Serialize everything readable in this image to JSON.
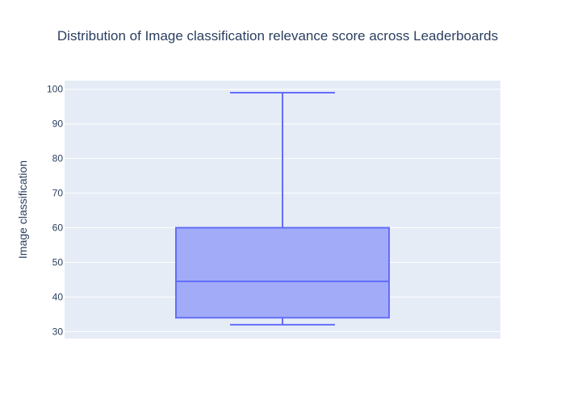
{
  "chart_data": {
    "type": "box",
    "title": "Distribution of Image classification relevance score across Leaderboards",
    "xlabel": "",
    "ylabel": "Image classification",
    "ylim": [
      28,
      102.5
    ],
    "yticks": [
      30,
      40,
      50,
      60,
      70,
      80,
      90,
      100
    ],
    "grid": true,
    "series": [
      {
        "min": 32,
        "q1": 34,
        "median": 44.5,
        "q3": 60,
        "max": 99
      }
    ]
  },
  "colors": {
    "plot_bg": "#e5ecf6",
    "grid": "#ffffff",
    "box_line": "#636efa",
    "box_fill": "#a2abf7",
    "text": "#2a3f5f"
  }
}
